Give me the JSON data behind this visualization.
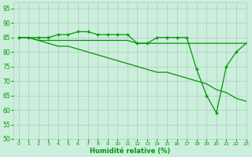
{
  "xlabel": "Humidité relative (%)",
  "xlim": [
    -0.5,
    23
  ],
  "ylim": [
    50,
    97
  ],
  "yticks": [
    50,
    55,
    60,
    65,
    70,
    75,
    80,
    85,
    90,
    95
  ],
  "xticks": [
    0,
    1,
    2,
    3,
    4,
    5,
    6,
    7,
    8,
    9,
    10,
    11,
    12,
    13,
    14,
    15,
    16,
    17,
    18,
    19,
    20,
    21,
    22,
    23
  ],
  "background_color": "#cceedd",
  "grid_color": "#aaccbb",
  "line_color": "#009900",
  "line1_x": [
    0,
    1,
    2,
    3,
    4,
    5,
    6,
    7,
    8,
    9,
    10,
    11,
    12,
    13,
    14,
    15,
    16,
    17,
    18,
    19,
    20,
    21,
    22,
    23
  ],
  "line1_y": [
    85,
    85,
    85,
    85,
    86,
    86,
    87,
    87,
    86,
    86,
    86,
    86,
    83,
    83,
    85,
    85,
    85,
    85,
    74,
    65,
    59,
    75,
    80,
    83
  ],
  "line2_x": [
    0,
    1,
    2,
    3,
    4,
    5,
    6,
    7,
    8,
    9,
    10,
    11,
    12,
    13,
    14,
    15,
    16,
    17,
    18,
    19,
    20,
    21,
    22,
    23
  ],
  "line2_y": [
    85,
    85,
    84,
    84,
    84,
    84,
    84,
    84,
    84,
    84,
    84,
    84,
    83,
    83,
    83,
    83,
    83,
    83,
    83,
    83,
    83,
    83,
    83,
    83
  ],
  "line3_x": [
    0,
    1,
    2,
    3,
    4,
    5,
    6,
    7,
    8,
    9,
    10,
    11,
    12,
    13,
    14,
    15,
    16,
    17,
    18,
    19,
    20,
    21,
    22,
    23
  ],
  "line3_y": [
    85,
    85,
    84,
    83,
    82,
    82,
    81,
    80,
    79,
    78,
    77,
    76,
    75,
    74,
    73,
    73,
    72,
    71,
    70,
    69,
    67,
    66,
    64,
    63
  ]
}
